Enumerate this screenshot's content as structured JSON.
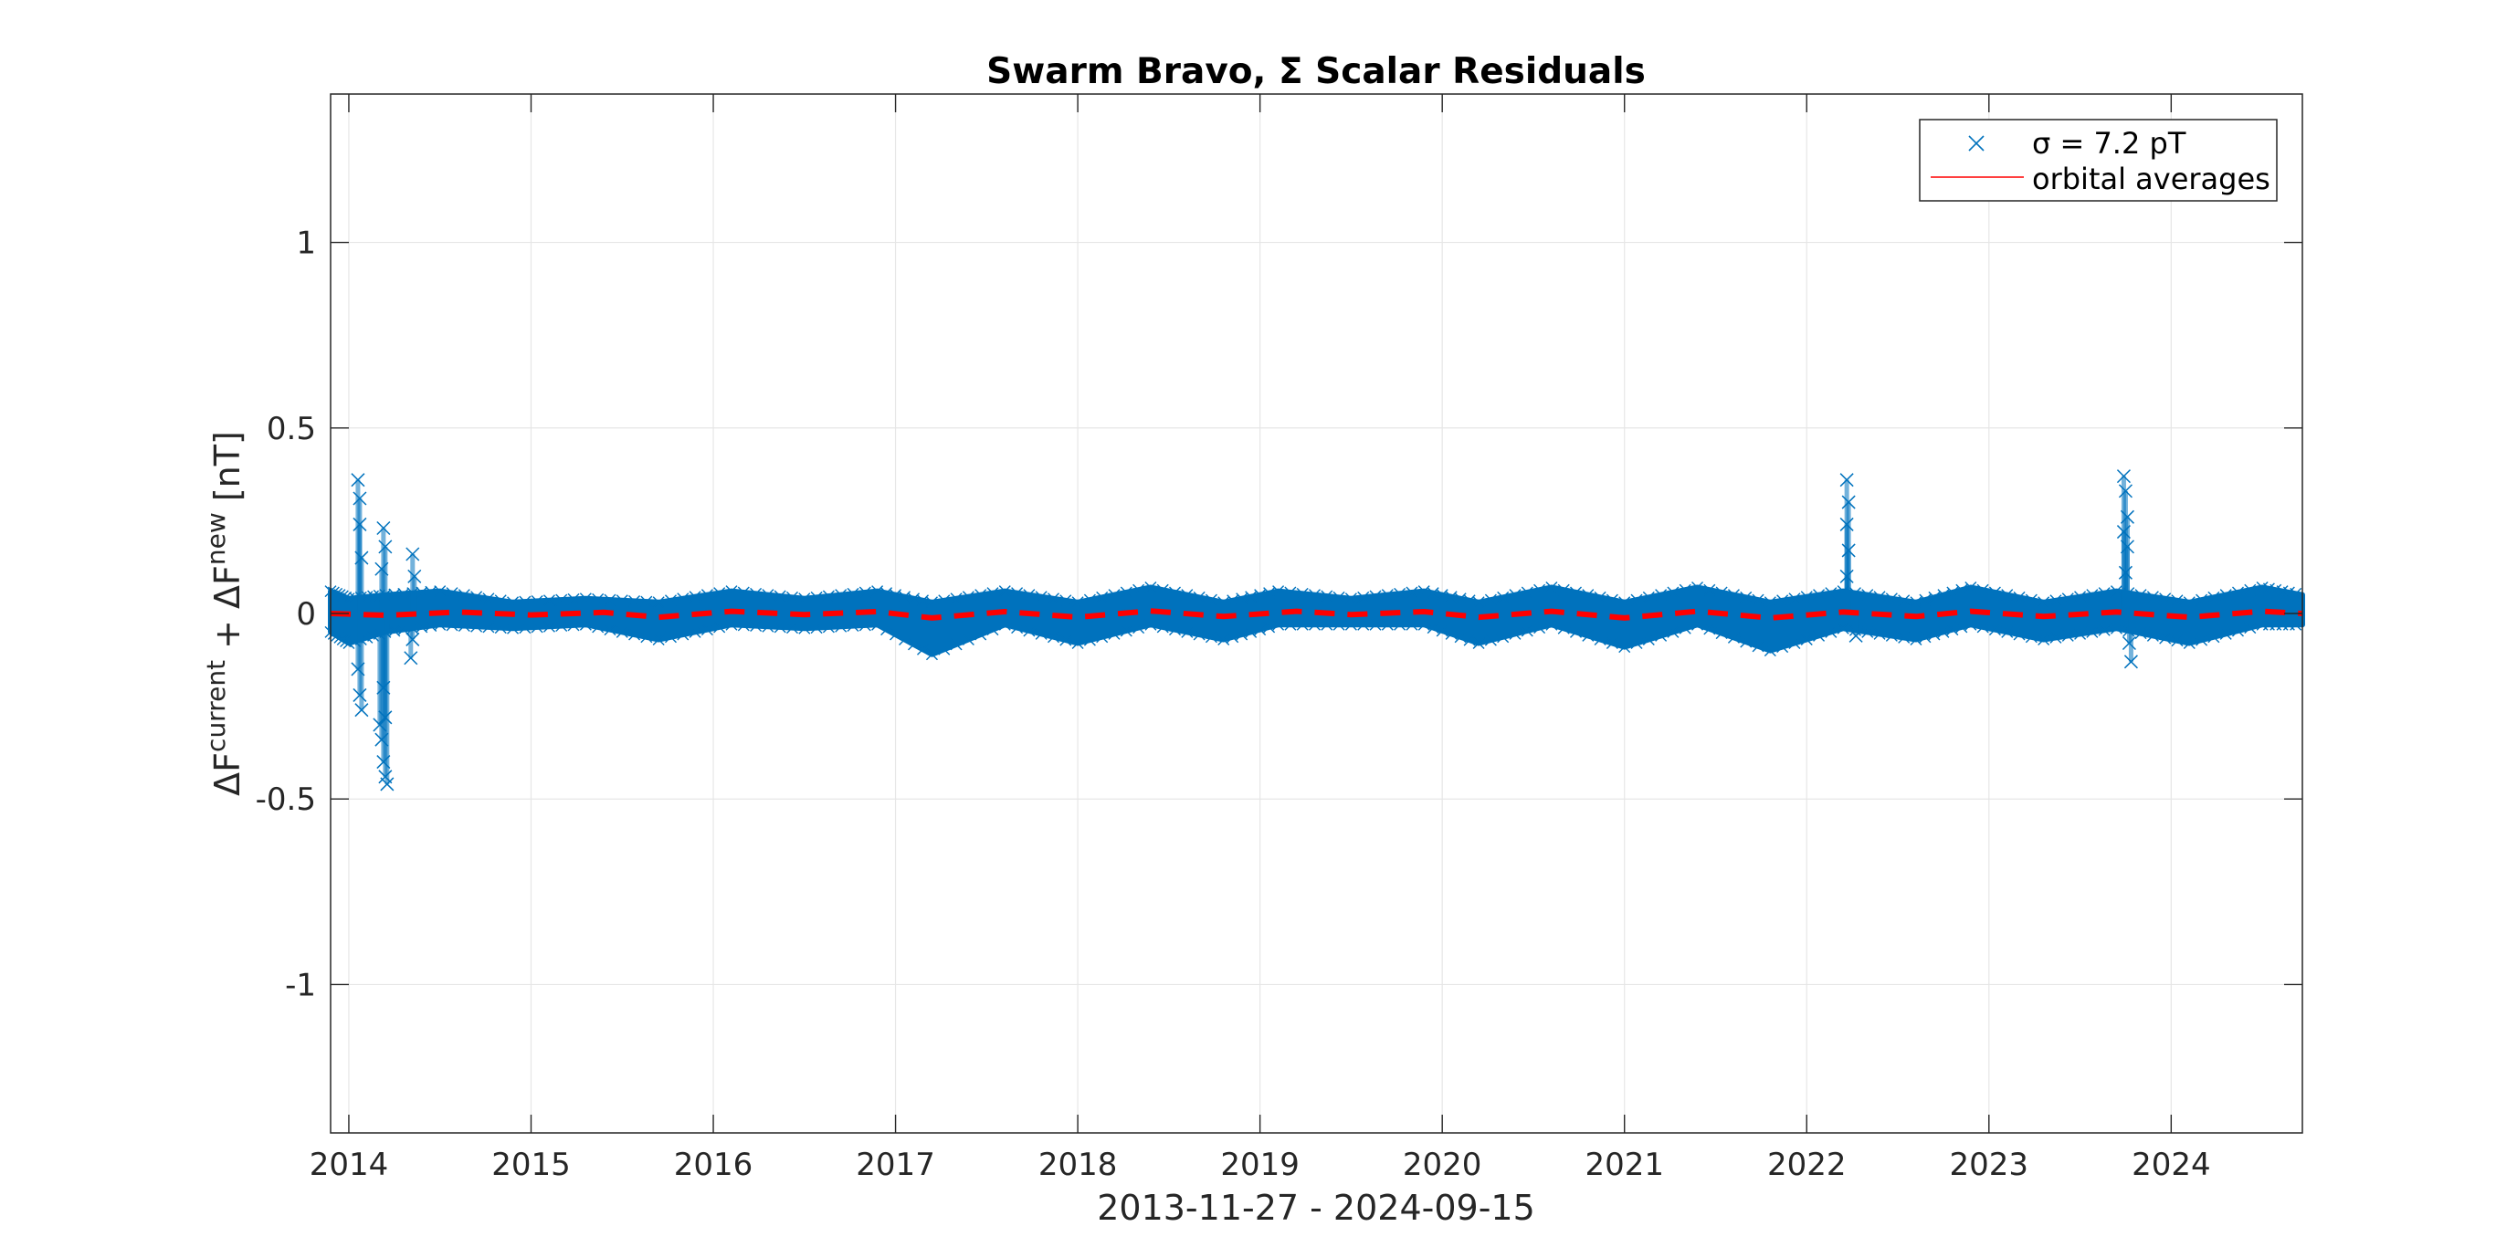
{
  "chart_data": {
    "type": "scatter",
    "title": "Swarm Bravo, Σ Scalar Residuals",
    "xlabel": "2013-11-27 - 2024-09-15",
    "ylabel": {
      "delta1": "Δ",
      "f1": "F",
      "sup1": "current",
      "plus": " + ",
      "delta2": "Δ",
      "f2": "F",
      "sup2": "new",
      "unit": " [nT]"
    },
    "x_start": "2013-11-27",
    "x_end": "2024-09-15",
    "xlim": [
      2013.9,
      2024.72
    ],
    "ylim": [
      -1.4,
      1.4
    ],
    "x_ticks": [
      "2014",
      "2015",
      "2016",
      "2017",
      "2018",
      "2019",
      "2020",
      "2021",
      "2022",
      "2023",
      "2024"
    ],
    "y_ticks": [
      {
        "value": 1,
        "label": "1"
      },
      {
        "value": 0.5,
        "label": "0.5"
      },
      {
        "value": 0,
        "label": "0"
      },
      {
        "value": -0.5,
        "label": "-0.5"
      },
      {
        "value": -1,
        "label": "-1"
      }
    ],
    "grid": true,
    "legend_position": "top-right",
    "series": [
      {
        "name": "σ = 7.2 pT",
        "kind": "scatter",
        "marker": "x",
        "color": "#0072BD",
        "band": [
          {
            "x": 2013.9,
            "low": -0.05,
            "high": 0.06
          },
          {
            "x": 2014.0,
            "low": -0.08,
            "high": 0.04
          },
          {
            "x": 2014.2,
            "low": -0.05,
            "high": 0.05
          },
          {
            "x": 2014.5,
            "low": -0.03,
            "high": 0.06
          },
          {
            "x": 2014.9,
            "low": -0.04,
            "high": 0.03
          },
          {
            "x": 2015.3,
            "low": -0.03,
            "high": 0.04
          },
          {
            "x": 2015.7,
            "low": -0.07,
            "high": 0.03
          },
          {
            "x": 2016.1,
            "low": -0.03,
            "high": 0.06
          },
          {
            "x": 2016.5,
            "low": -0.04,
            "high": 0.04
          },
          {
            "x": 2016.9,
            "low": -0.03,
            "high": 0.06
          },
          {
            "x": 2017.2,
            "low": -0.11,
            "high": 0.03
          },
          {
            "x": 2017.6,
            "low": -0.03,
            "high": 0.06
          },
          {
            "x": 2018.0,
            "low": -0.08,
            "high": 0.03
          },
          {
            "x": 2018.4,
            "low": -0.03,
            "high": 0.07
          },
          {
            "x": 2018.8,
            "low": -0.07,
            "high": 0.03
          },
          {
            "x": 2019.1,
            "low": -0.03,
            "high": 0.06
          },
          {
            "x": 2019.5,
            "low": -0.03,
            "high": 0.04
          },
          {
            "x": 2019.9,
            "low": -0.03,
            "high": 0.06
          },
          {
            "x": 2020.2,
            "low": -0.08,
            "high": 0.03
          },
          {
            "x": 2020.6,
            "low": -0.03,
            "high": 0.07
          },
          {
            "x": 2021.0,
            "low": -0.09,
            "high": 0.03
          },
          {
            "x": 2021.4,
            "low": -0.03,
            "high": 0.07
          },
          {
            "x": 2021.8,
            "low": -0.1,
            "high": 0.03
          },
          {
            "x": 2022.2,
            "low": -0.04,
            "high": 0.06
          },
          {
            "x": 2022.6,
            "low": -0.07,
            "high": 0.03
          },
          {
            "x": 2022.9,
            "low": -0.03,
            "high": 0.07
          },
          {
            "x": 2023.3,
            "low": -0.07,
            "high": 0.03
          },
          {
            "x": 2023.7,
            "low": -0.04,
            "high": 0.06
          },
          {
            "x": 2024.1,
            "low": -0.08,
            "high": 0.03
          },
          {
            "x": 2024.5,
            "low": -0.03,
            "high": 0.07
          },
          {
            "x": 2024.72,
            "low": -0.03,
            "high": 0.05
          }
        ],
        "outliers": [
          {
            "x": 2014.05,
            "y": 0.36
          },
          {
            "x": 2014.06,
            "y": 0.31
          },
          {
            "x": 2014.06,
            "y": 0.24
          },
          {
            "x": 2014.07,
            "y": 0.15
          },
          {
            "x": 2014.05,
            "y": -0.15
          },
          {
            "x": 2014.06,
            "y": -0.22
          },
          {
            "x": 2014.07,
            "y": -0.26
          },
          {
            "x": 2014.19,
            "y": 0.23
          },
          {
            "x": 2014.2,
            "y": 0.18
          },
          {
            "x": 2014.18,
            "y": 0.12
          },
          {
            "x": 2014.19,
            "y": -0.2
          },
          {
            "x": 2014.2,
            "y": -0.28
          },
          {
            "x": 2014.18,
            "y": -0.34
          },
          {
            "x": 2014.19,
            "y": -0.4
          },
          {
            "x": 2014.2,
            "y": -0.44
          },
          {
            "x": 2014.21,
            "y": -0.46
          },
          {
            "x": 2014.17,
            "y": -0.3
          },
          {
            "x": 2014.35,
            "y": 0.16
          },
          {
            "x": 2014.36,
            "y": 0.1
          },
          {
            "x": 2014.34,
            "y": -0.12
          },
          {
            "x": 2014.35,
            "y": -0.07
          },
          {
            "x": 2022.22,
            "y": 0.36
          },
          {
            "x": 2022.23,
            "y": 0.3
          },
          {
            "x": 2022.22,
            "y": 0.24
          },
          {
            "x": 2022.23,
            "y": 0.17
          },
          {
            "x": 2022.22,
            "y": 0.1
          },
          {
            "x": 2022.27,
            "y": -0.06
          },
          {
            "x": 2023.74,
            "y": 0.37
          },
          {
            "x": 2023.75,
            "y": 0.33
          },
          {
            "x": 2023.76,
            "y": 0.26
          },
          {
            "x": 2023.74,
            "y": 0.22
          },
          {
            "x": 2023.76,
            "y": 0.18
          },
          {
            "x": 2023.75,
            "y": 0.11
          },
          {
            "x": 2023.77,
            "y": -0.08
          },
          {
            "x": 2023.78,
            "y": -0.13
          }
        ]
      },
      {
        "name": "orbital averages",
        "kind": "line",
        "color": "#FF0000",
        "points": [
          {
            "x": 2013.9,
            "y": 0.0
          },
          {
            "x": 2014.2,
            "y": -0.005
          },
          {
            "x": 2014.6,
            "y": 0.004
          },
          {
            "x": 2015.0,
            "y": -0.004
          },
          {
            "x": 2015.4,
            "y": 0.003
          },
          {
            "x": 2015.7,
            "y": -0.01
          },
          {
            "x": 2016.1,
            "y": 0.006
          },
          {
            "x": 2016.5,
            "y": -0.003
          },
          {
            "x": 2016.9,
            "y": 0.005
          },
          {
            "x": 2017.2,
            "y": -0.012
          },
          {
            "x": 2017.6,
            "y": 0.005
          },
          {
            "x": 2018.0,
            "y": -0.01
          },
          {
            "x": 2018.4,
            "y": 0.007
          },
          {
            "x": 2018.8,
            "y": -0.008
          },
          {
            "x": 2019.2,
            "y": 0.006
          },
          {
            "x": 2019.5,
            "y": -0.003
          },
          {
            "x": 2019.9,
            "y": 0.005
          },
          {
            "x": 2020.2,
            "y": -0.01
          },
          {
            "x": 2020.6,
            "y": 0.006
          },
          {
            "x": 2021.0,
            "y": -0.012
          },
          {
            "x": 2021.4,
            "y": 0.006
          },
          {
            "x": 2021.8,
            "y": -0.012
          },
          {
            "x": 2022.2,
            "y": 0.004
          },
          {
            "x": 2022.6,
            "y": -0.008
          },
          {
            "x": 2022.9,
            "y": 0.006
          },
          {
            "x": 2023.3,
            "y": -0.008
          },
          {
            "x": 2023.7,
            "y": 0.004
          },
          {
            "x": 2024.1,
            "y": -0.01
          },
          {
            "x": 2024.5,
            "y": 0.006
          },
          {
            "x": 2024.72,
            "y": 0.0
          }
        ]
      }
    ]
  }
}
